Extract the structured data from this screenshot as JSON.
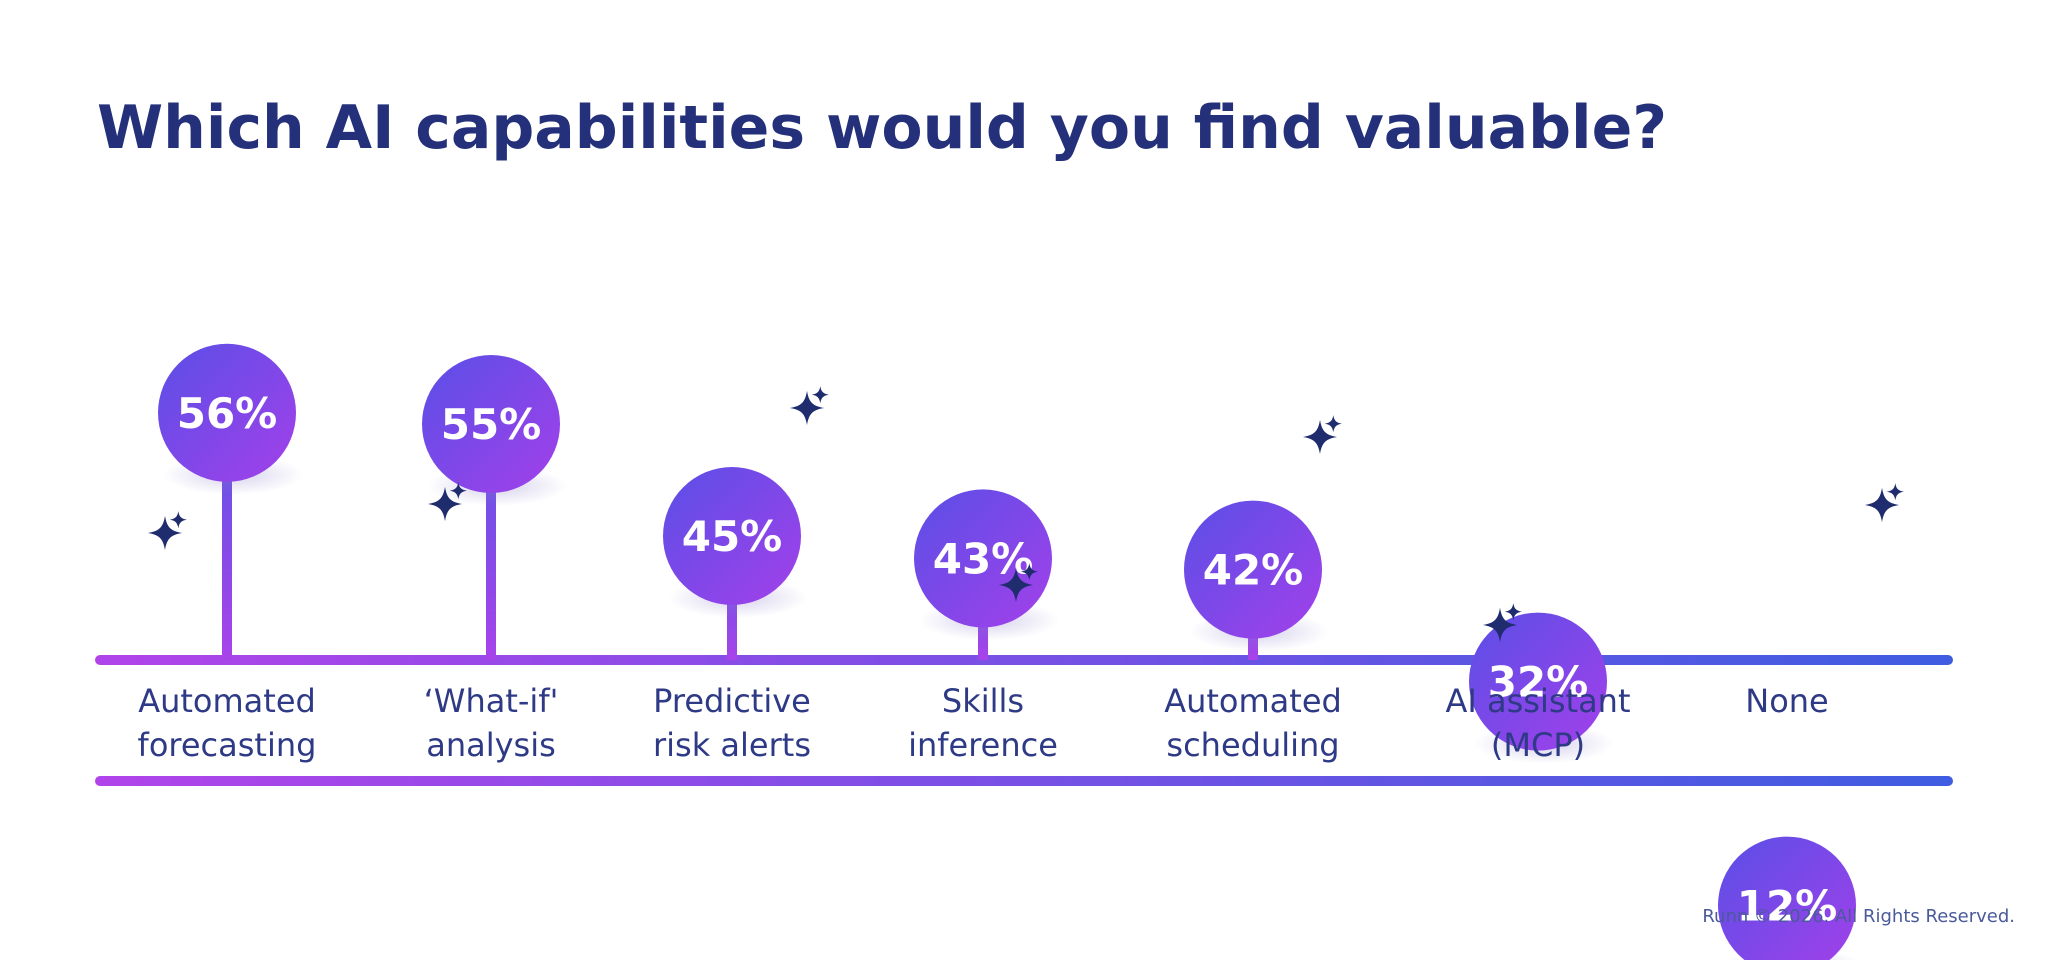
{
  "colors": {
    "title": "#24317a",
    "label": "#2e3a86",
    "footer": "#4a5a9a",
    "bubble_start": "#5a4fe6",
    "bubble_end": "#a340ea",
    "line_start": "#b044ea",
    "line_end": "#3f5ce0",
    "sparkle": "#1f2c6e"
  },
  "chart_data": {
    "type": "bar",
    "title": "Which AI capabilities would you find valuable?",
    "categories": [
      [
        "Automated",
        "forecasting"
      ],
      [
        "‘What-if'",
        "analysis"
      ],
      [
        "Predictive",
        "risk alerts"
      ],
      [
        "Skills",
        "inference"
      ],
      [
        "Automated",
        "scheduling"
      ],
      [
        "AI assistant",
        "(MCP)"
      ],
      [
        "None"
      ]
    ],
    "values": [
      56,
      55,
      45,
      43,
      42,
      32,
      12
    ],
    "value_labels": [
      "56%",
      "55%",
      "45%",
      "43%",
      "42%",
      "32%",
      "12%"
    ],
    "unit": "%",
    "ylim": [
      0,
      100
    ],
    "grid": false,
    "legend": "none"
  },
  "footer": "Runn © 2026. All Rights Reserved.",
  "decorations": {
    "sparkle_icon": "sparkle-icon"
  }
}
